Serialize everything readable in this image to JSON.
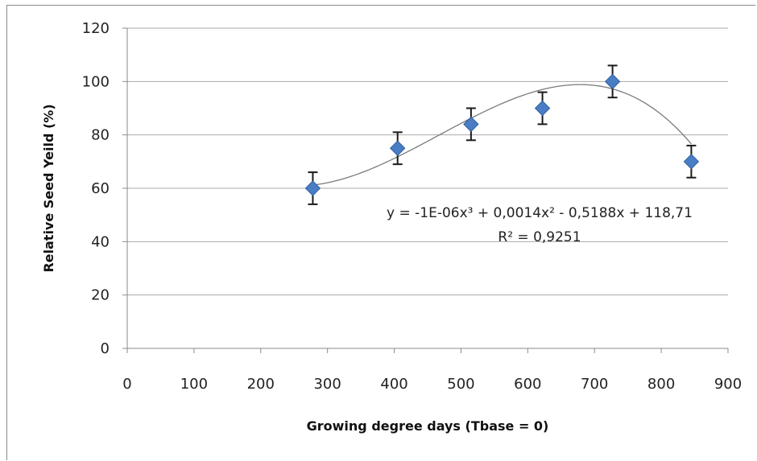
{
  "chart_data": {
    "type": "scatter",
    "xlabel": "Growing degree days (Tbase = 0)",
    "ylabel": "Relative Seed Yeild (%)",
    "xlim": [
      0,
      900
    ],
    "ylim": [
      0,
      120
    ],
    "xticks": [
      0,
      100,
      200,
      300,
      400,
      500,
      600,
      700,
      800,
      900
    ],
    "yticks": [
      0,
      20,
      40,
      60,
      80,
      100,
      120
    ],
    "grid": "horizontal",
    "legend": "none",
    "points": [
      {
        "x": 278,
        "y": 60,
        "err": 6
      },
      {
        "x": 405,
        "y": 75,
        "err": 6
      },
      {
        "x": 515,
        "y": 84,
        "err": 6
      },
      {
        "x": 622,
        "y": 90,
        "err": 6
      },
      {
        "x": 727,
        "y": 100,
        "err": 6
      },
      {
        "x": 845,
        "y": 70,
        "err": 6
      }
    ],
    "trendline": {
      "type": "polynomial",
      "order": 3,
      "coefficients": [
        -1e-06,
        0.0014,
        -0.5188,
        118.71
      ],
      "equation": "y = -1E-06x³ + 0,0014x² - 0,5188x + 118,71",
      "r_squared": "R² = 0,9251"
    },
    "colors": {
      "marker": "#4a7ec4",
      "marker_edge": "#2f5f9e",
      "errorbar": "#1a1a1a",
      "trendline": "#7a7a7a",
      "grid": "#a9a9a9",
      "axis": "#8a8a8a"
    }
  }
}
